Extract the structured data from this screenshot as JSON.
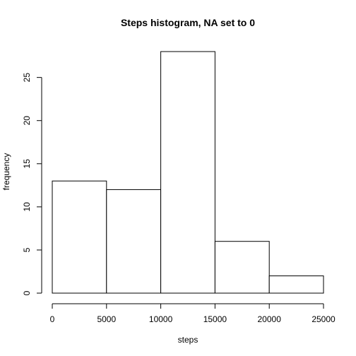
{
  "chart_data": {
    "type": "bar",
    "title": "Steps histogram, NA set to 0",
    "xlabel": "steps",
    "ylabel": "frequency",
    "bins": [
      {
        "from": 0,
        "to": 5000,
        "count": 13
      },
      {
        "from": 5000,
        "to": 10000,
        "count": 12
      },
      {
        "from": 10000,
        "to": 15000,
        "count": 28
      },
      {
        "from": 15000,
        "to": 20000,
        "count": 6
      },
      {
        "from": 20000,
        "to": 25000,
        "count": 2
      }
    ],
    "xlim": [
      0,
      25000
    ],
    "ylim": [
      0,
      28
    ],
    "xticks": [
      0,
      5000,
      10000,
      15000,
      20000,
      25000
    ],
    "yticks": [
      0,
      5,
      10,
      15,
      20,
      25
    ],
    "grid": false,
    "legend": "none"
  }
}
